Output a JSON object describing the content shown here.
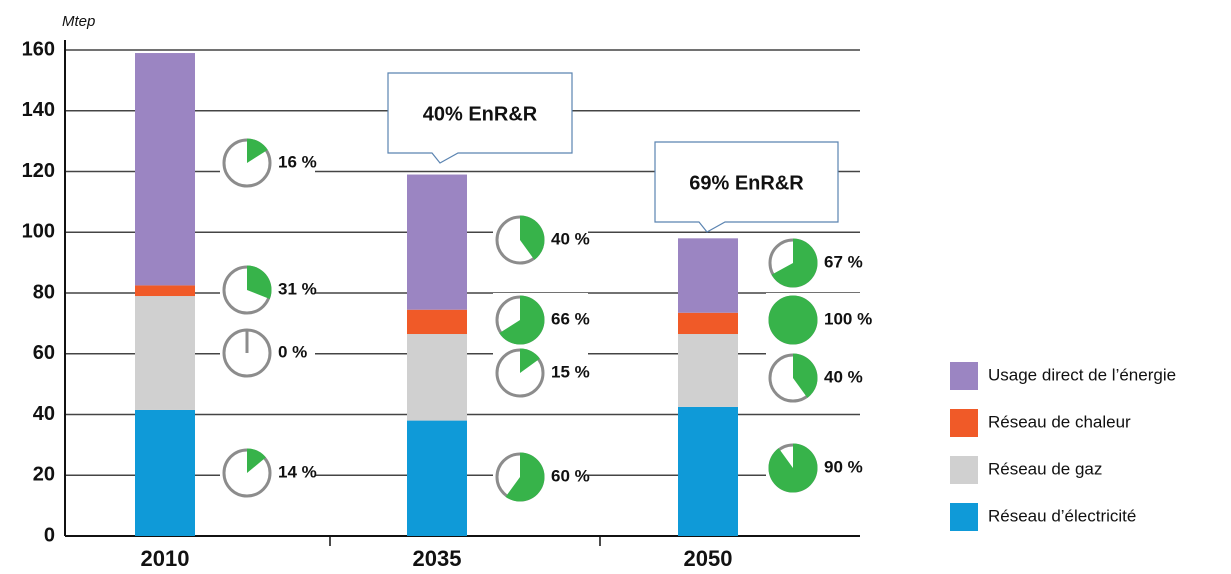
{
  "chart_data": {
    "type": "stacked_bar",
    "y_label": "Mtep",
    "categories": [
      "2010",
      "2035",
      "2050"
    ],
    "ylim": [
      0,
      160
    ],
    "yticks": [
      0,
      20,
      40,
      60,
      80,
      100,
      120,
      140,
      160
    ],
    "grid": true,
    "series": [
      {
        "name": "Réseau d’électricité",
        "color": "#0f9ad8",
        "values": [
          41.5,
          38,
          42.5
        ],
        "renewable_share": [
          14,
          60,
          90
        ],
        "renewable_share_labels": [
          "14 %",
          "60 %",
          "90 %"
        ]
      },
      {
        "name": "Réseau de gaz",
        "color": "#d0d0d0",
        "values": [
          37.5,
          28.5,
          24
        ],
        "renewable_share": [
          0,
          15,
          40
        ],
        "renewable_share_labels": [
          "0 %",
          "15 %",
          "40 %"
        ]
      },
      {
        "name": "Réseau de chaleur",
        "color": "#f05a28",
        "values": [
          3.5,
          8,
          7
        ],
        "renewable_share": [
          31,
          66,
          100
        ],
        "renewable_share_labels": [
          "31 %",
          "66 %",
          "100 %"
        ]
      },
      {
        "name": "Usage direct de l’énergie",
        "color": "#9b85c2",
        "values": [
          76.5,
          44.5,
          24.5
        ],
        "renewable_share": [
          16,
          40,
          67
        ],
        "renewable_share_labels": [
          "16 %",
          "40 %",
          "67 %"
        ]
      }
    ],
    "share_color": "#37b34a",
    "annotations": [
      null,
      "40% EnR&R",
      "69% EnR&R"
    ]
  }
}
